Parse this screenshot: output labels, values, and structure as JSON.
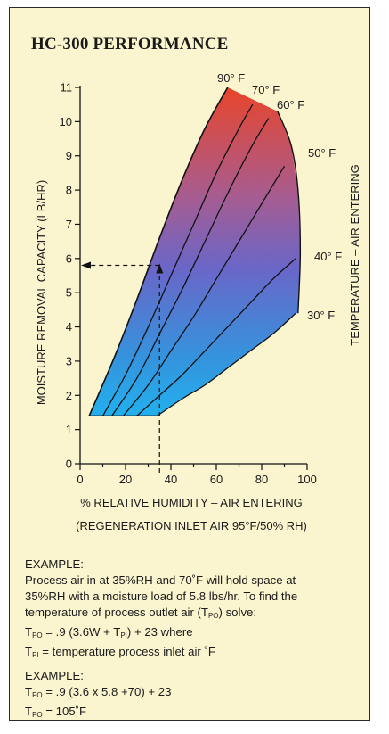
{
  "title": "HC-300 PERFORMANCE",
  "chart_data": {
    "type": "line",
    "title": "HC-300 PERFORMANCE",
    "xlabel": "% RELATIVE HUMIDITY – AIR ENTERING",
    "xlabel2": "(REGENERATION INLET AIR 95°F/50% RH)",
    "ylabel": "MOISTURE REMOVAL CAPACITY (LB/HR)",
    "right_label": "TEMPERATURE – AIR ENTERING",
    "xlim": [
      0,
      100
    ],
    "ylim": [
      0,
      11
    ],
    "x_ticks": [
      0,
      20,
      40,
      60,
      80,
      100
    ],
    "y_ticks": [
      0,
      1,
      2,
      3,
      4,
      5,
      6,
      7,
      8,
      9,
      10,
      11
    ],
    "series": [
      {
        "name": "90° F",
        "x": [
          4,
          15,
          25,
          35,
          45,
          55,
          65
        ],
        "y": [
          1.4,
          3.1,
          4.8,
          6.6,
          8.3,
          9.8,
          11.0
        ]
      },
      {
        "name": "70° F",
        "x": [
          10,
          20,
          30,
          40,
          50,
          60,
          70,
          76
        ],
        "y": [
          1.4,
          2.6,
          4.0,
          5.5,
          7.0,
          8.5,
          9.8,
          10.5
        ]
      },
      {
        "name": "60° F",
        "x": [
          14,
          25,
          35,
          45,
          55,
          65,
          75,
          83
        ],
        "y": [
          1.4,
          2.5,
          3.8,
          5.1,
          6.5,
          7.9,
          9.2,
          10.1
        ]
      },
      {
        "name": "50° F",
        "x": [
          19,
          30,
          40,
          50,
          60,
          70,
          80,
          90
        ],
        "y": [
          1.4,
          2.3,
          3.3,
          4.3,
          5.4,
          6.5,
          7.6,
          8.7
        ]
      },
      {
        "name": "40° F",
        "x": [
          25,
          35,
          45,
          55,
          65,
          75,
          85,
          95
        ],
        "y": [
          1.4,
          2.0,
          2.6,
          3.3,
          4.0,
          4.7,
          5.4,
          6.0
        ]
      },
      {
        "name": "30° F",
        "x": [
          34,
          45,
          55,
          65,
          75,
          85,
          95
        ],
        "y": [
          1.4,
          1.9,
          2.3,
          2.8,
          3.3,
          3.8,
          4.4
        ]
      }
    ],
    "envelope": {
      "x": [
        96,
        97,
        96,
        93,
        87
      ],
      "y": [
        4.4,
        6.2,
        8.0,
        9.3,
        10.3
      ]
    },
    "example": {
      "x": 35,
      "y": 5.8
    }
  },
  "notes": {
    "example_label_1": "EXAMPLE:",
    "line1": "Process air in at 35%RH and 70˚F will hold space at",
    "line2": "35%RH with a moisture load of 5.8 lbs/hr. To find the",
    "line3_pre": "temperature of process outlet air (T",
    "line3_sub": "PO",
    "line3_post": ") solve:",
    "f1_a": "T",
    "f1_sub1": "PO",
    "f1_b": " = .9 (3.6W + T",
    "f1_sub2": "PI",
    "f1_c": ") + 23 where",
    "f2_a": "T",
    "f2_sub": "PI",
    "f2_b": " = temperature process inlet air ˚F",
    "example_label_2": "EXAMPLE:",
    "f3_a": "T",
    "f3_sub": "PO",
    "f3_b": " = .9 (3.6 x 5.8 +70) + 23",
    "f4_a": "T",
    "f4_sub": "PO",
    "f4_b": " = 105˚F"
  }
}
